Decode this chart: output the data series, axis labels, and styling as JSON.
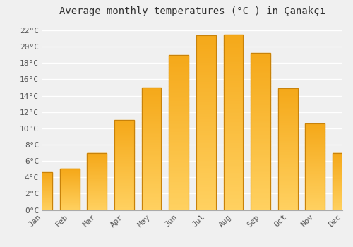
{
  "title": "Average monthly temperatures (°C ) in Çanakçı",
  "months": [
    "Jan",
    "Feb",
    "Mar",
    "Apr",
    "May",
    "Jun",
    "Jul",
    "Aug",
    "Sep",
    "Oct",
    "Nov",
    "Dec"
  ],
  "temperatures": [
    4.6,
    5.1,
    7.0,
    11.0,
    15.0,
    19.0,
    21.4,
    21.5,
    19.2,
    14.9,
    10.6,
    7.0
  ],
  "bar_color_top": "#F5A800",
  "bar_color_bottom": "#FFD060",
  "bar_edge_color": "#C8820A",
  "background_color": "#F0F0F0",
  "grid_color": "#FFFFFF",
  "ylim": [
    0,
    23
  ],
  "yticks": [
    0,
    2,
    4,
    6,
    8,
    10,
    12,
    14,
    16,
    18,
    20,
    22
  ],
  "title_fontsize": 10,
  "tick_fontsize": 8
}
